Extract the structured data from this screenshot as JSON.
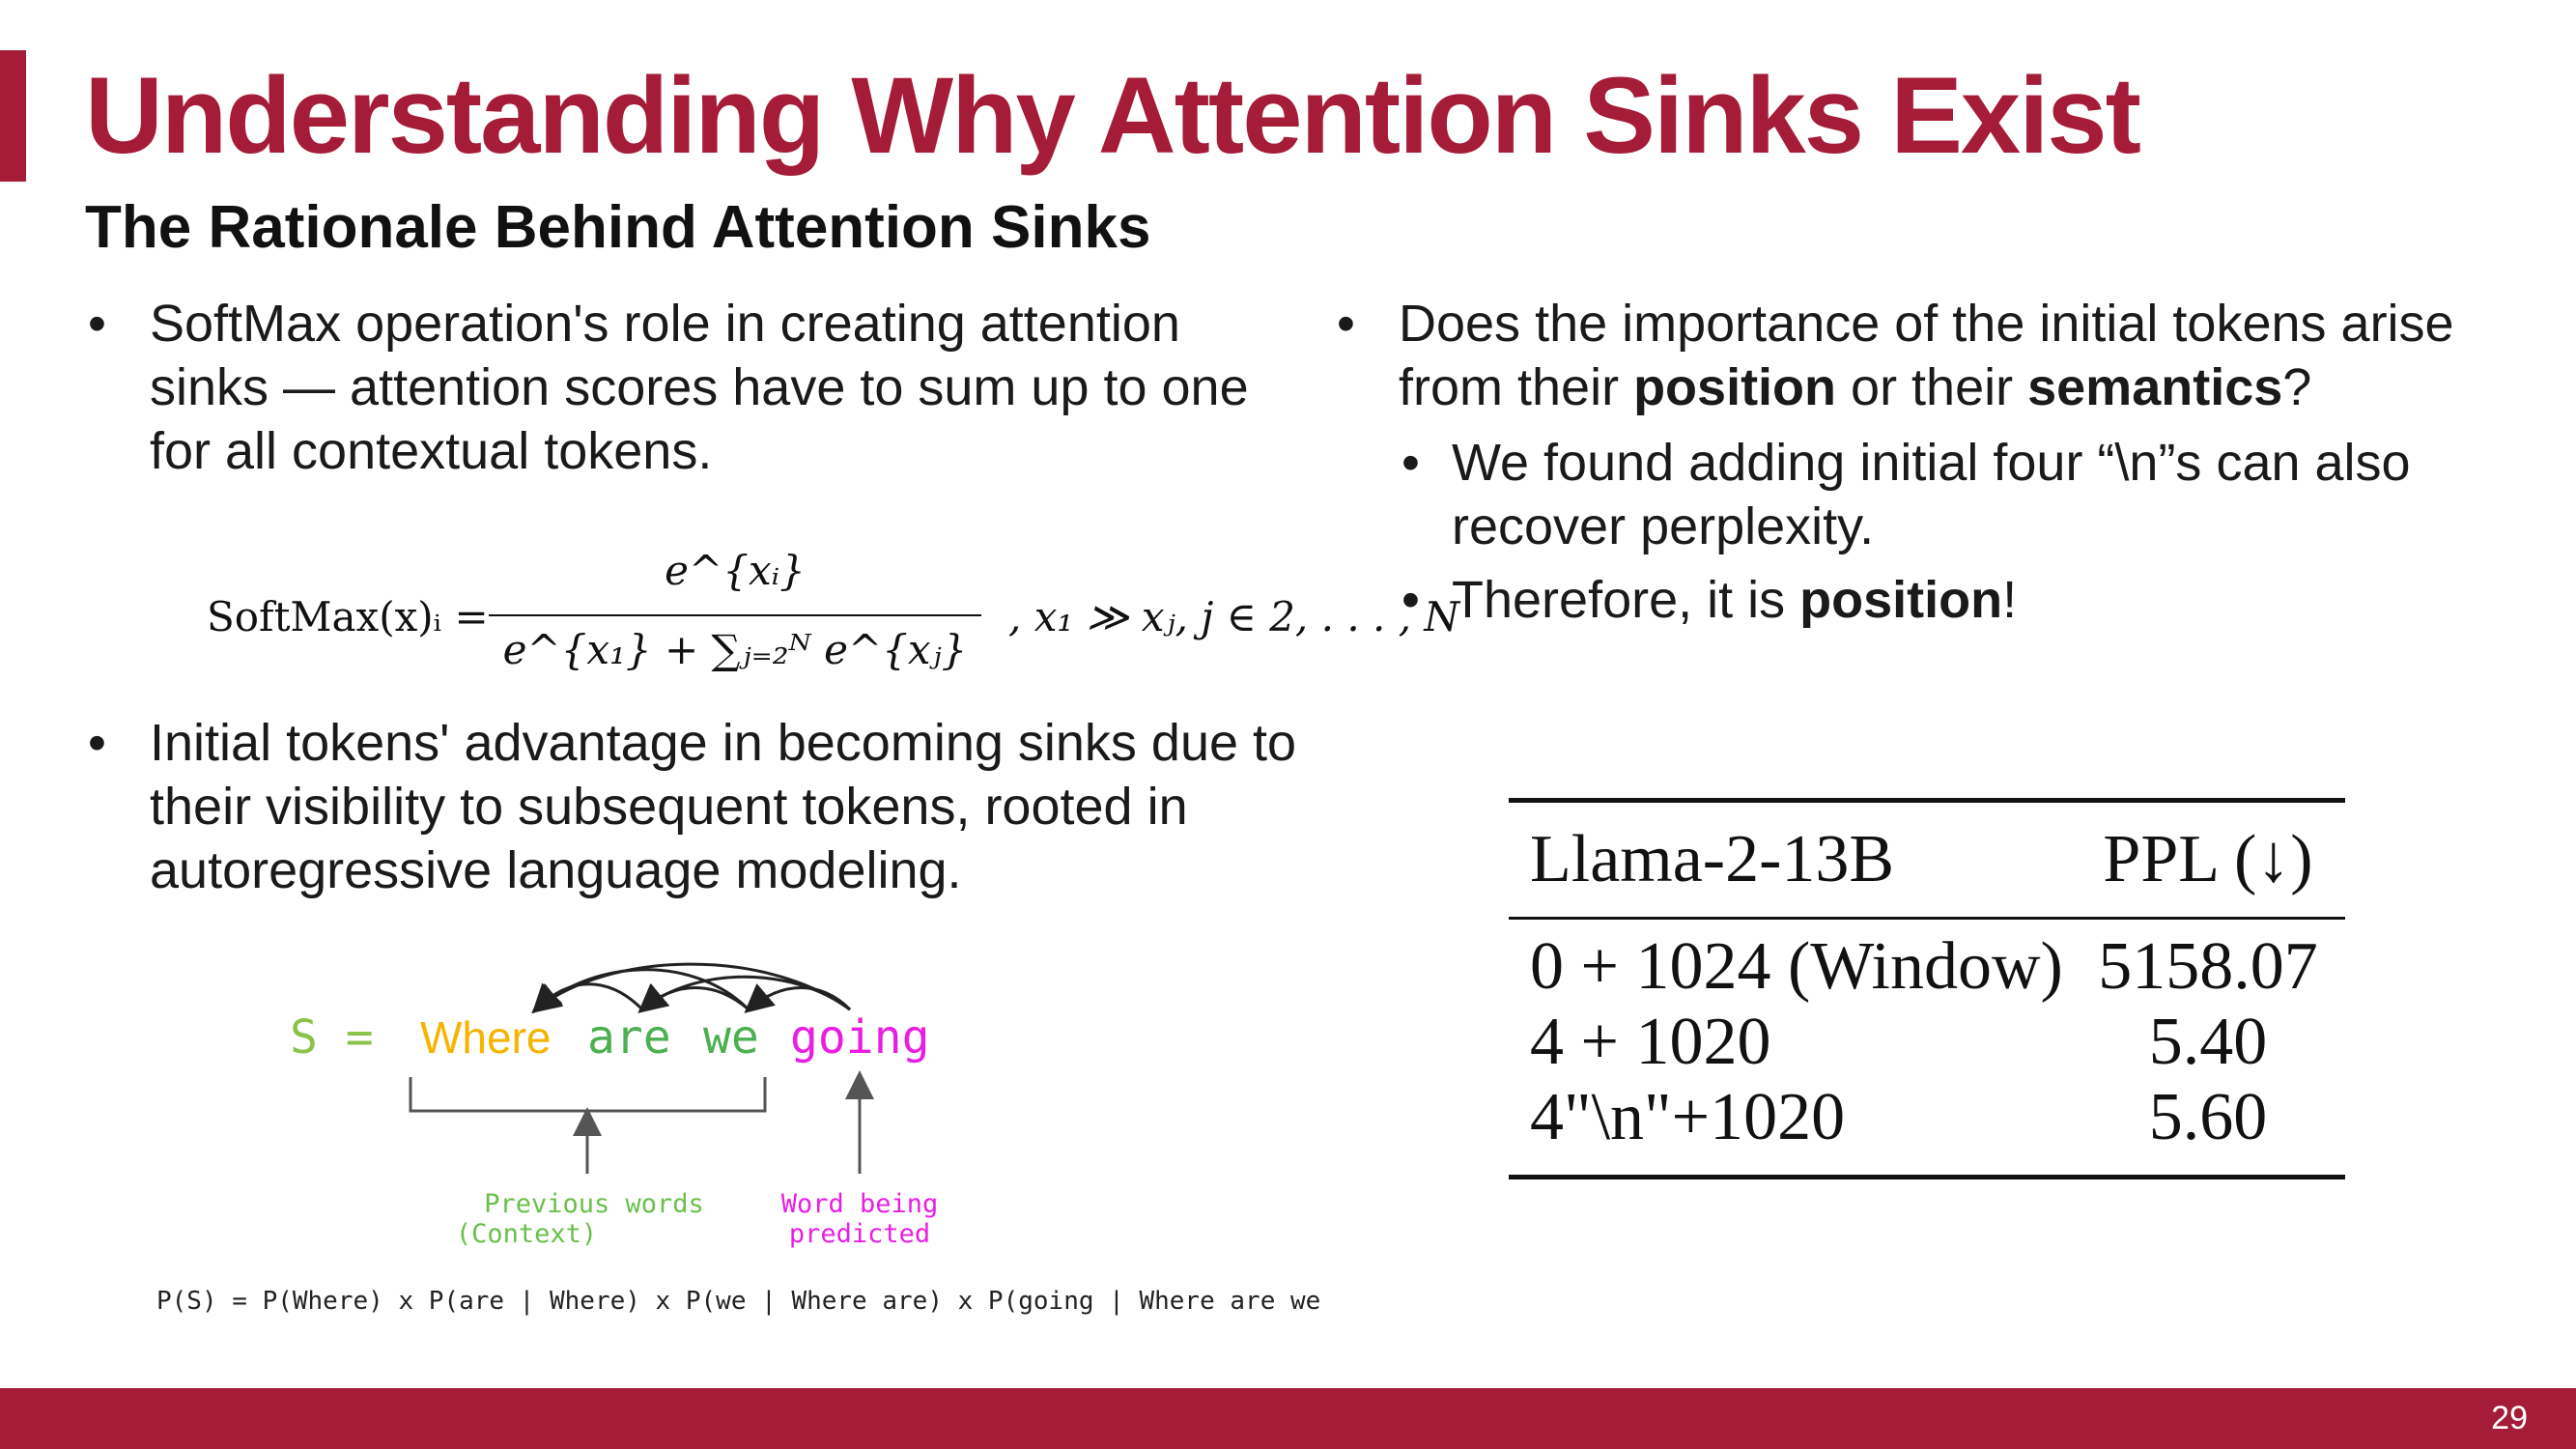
{
  "slide": {
    "title": "Understanding Why Attention Sinks Exist",
    "subtitle": "The Rationale Behind Attention Sinks",
    "page_number": "29",
    "accent_color": "#a51c38"
  },
  "left": {
    "bullet1": "SoftMax operation's role in creating attention sinks — attention scores have to sum up to one for all contextual tokens.",
    "bullet2": "Initial tokens' advantage in becoming sinks due to their visibility to subsequent tokens, rooted in autoregressive language modeling."
  },
  "formula": {
    "lhs": "SoftMax(x)ᵢ =",
    "numerator": "e^{xᵢ}",
    "denominator": "e^{x₁} + ∑ⱼ₌₂ᴺ e^{xⱼ}",
    "condition": ",   x₁ ≫ xⱼ, j ∈ 2, . . . , N"
  },
  "diagram": {
    "sentence_prefix": "S =",
    "words": [
      "Where",
      "are",
      "we",
      "going"
    ],
    "context_label_line1": "Previous words",
    "context_label_line2": "(Context)",
    "predicted_label_line1": "Word being",
    "predicted_label_line2": "predicted",
    "equation": "P(S) = P(Where) x P(are | Where) x P(we | Where are) x P(going | Where are we)",
    "colors": {
      "prefix": "#8bc34a",
      "where": "#f5b400",
      "are_we": "#4caf50",
      "going": "#e91ee3",
      "context_label": "#6abf4b",
      "predicted_label": "#e91ee3"
    }
  },
  "right": {
    "bullet_prefix": "Does the importance of the initial tokens arise from their ",
    "bullet_bold1": "position",
    "bullet_mid": " or their ",
    "bullet_bold2": "semantics",
    "bullet_suffix": "?",
    "sub1": "We found adding initial four “\\n”s can also recover perplexity.",
    "sub2_prefix": "Therefore, it is ",
    "sub2_bold": "position",
    "sub2_suffix": "!"
  },
  "table": {
    "headers": [
      "Llama-2-13B",
      "PPL (↓)"
    ],
    "rows": [
      [
        "0 + 1024 (Window)",
        "5158.07"
      ],
      [
        "4 + 1020",
        "5.40"
      ],
      [
        "4\"\\n\"+1020",
        "5.60"
      ]
    ]
  }
}
